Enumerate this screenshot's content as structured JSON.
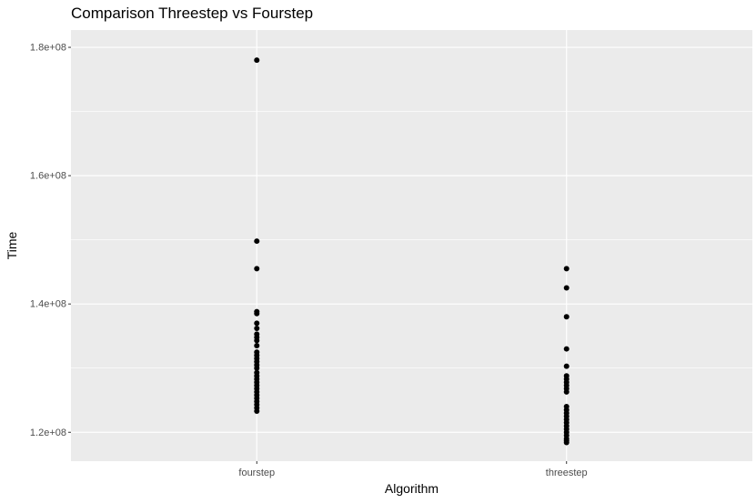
{
  "chart_data": {
    "type": "scatter",
    "title": "Comparison Threestep vs Fourstep",
    "xlabel": "Algorithm",
    "ylabel": "Time",
    "categories": [
      "fourstep",
      "threestep"
    ],
    "yticks": [
      120000000,
      140000000,
      160000000,
      180000000
    ],
    "ytick_labels": [
      "1.2e+08",
      "1.4e+08",
      "1.6e+08",
      "1.8e+08"
    ],
    "ylim": [
      115500000,
      182700000
    ],
    "grid": true,
    "colors": {
      "panel": "#ebebeb",
      "grid": "#ffffff",
      "point": "#000000"
    },
    "series": [
      {
        "category": "fourstep",
        "values": [
          178000000,
          149800000,
          145500000,
          138800000,
          138500000,
          137000000,
          136200000,
          135300000,
          134800000,
          134300000,
          133500000,
          132500000,
          132000000,
          131500000,
          131000000,
          130500000,
          130000000,
          129300000,
          128800000,
          128300000,
          127800000,
          127300000,
          126800000,
          126300000,
          125800000,
          125300000,
          124800000,
          124300000,
          123800000,
          123300000
        ]
      },
      {
        "category": "threestep",
        "values": [
          145500000,
          142500000,
          138000000,
          133000000,
          130300000,
          128800000,
          128300000,
          127800000,
          127300000,
          126800000,
          126300000,
          124000000,
          123500000,
          123000000,
          122500000,
          122000000,
          121500000,
          121000000,
          120500000,
          120000000,
          119500000,
          119000000,
          118700000,
          118400000
        ]
      }
    ]
  }
}
